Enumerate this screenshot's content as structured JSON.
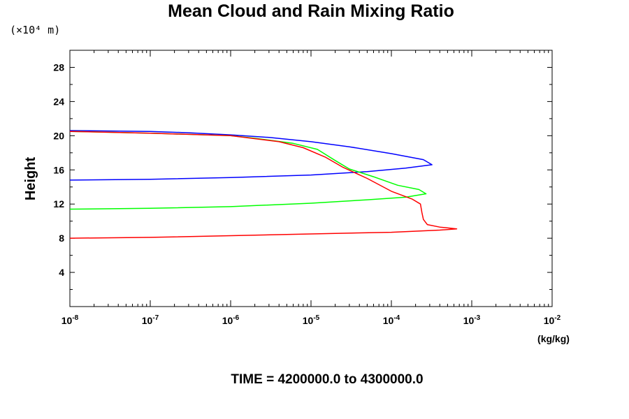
{
  "chart_data": {
    "type": "line",
    "title": "Mean Cloud and Rain Mixing Ratio",
    "ylabel": "Height",
    "y_scale_label": "(×10⁴ m)",
    "x_units_label": "(kg/kg)",
    "x_scale": "log",
    "xlim": [
      1e-08,
      0.01
    ],
    "ylim": [
      0,
      30
    ],
    "x_tick_labels": [
      {
        "base": "10",
        "exp": "-8"
      },
      {
        "base": "10",
        "exp": "-7"
      },
      {
        "base": "10",
        "exp": "-6"
      },
      {
        "base": "10",
        "exp": "-5"
      },
      {
        "base": "10",
        "exp": "-4"
      },
      {
        "base": "10",
        "exp": "-3"
      },
      {
        "base": "10",
        "exp": "-2"
      }
    ],
    "y_ticks": [
      4,
      8,
      12,
      16,
      20,
      24,
      28
    ],
    "grid": false,
    "series": [
      {
        "color": "#0000ff",
        "points": [
          [
            1e-08,
            14.8
          ],
          [
            1e-07,
            14.9
          ],
          [
            1e-06,
            15.1
          ],
          [
            1e-05,
            15.4
          ],
          [
            5e-05,
            15.8
          ],
          [
            0.00015,
            16.2
          ],
          [
            0.00032,
            16.6
          ],
          [
            0.00025,
            17.2
          ],
          [
            0.0001,
            17.9
          ],
          [
            3e-05,
            18.7
          ],
          [
            1e-05,
            19.3
          ],
          [
            3e-06,
            19.8
          ],
          [
            1e-06,
            20.1
          ],
          [
            3e-07,
            20.35
          ],
          [
            1e-07,
            20.5
          ],
          [
            1e-08,
            20.6
          ]
        ]
      },
      {
        "color": "#00ff00",
        "points": [
          [
            1e-08,
            11.4
          ],
          [
            1e-07,
            11.5
          ],
          [
            1e-06,
            11.7
          ],
          [
            1e-05,
            12.1
          ],
          [
            5e-05,
            12.5
          ],
          [
            0.00015,
            12.8
          ],
          [
            0.00027,
            13.2
          ],
          [
            0.00022,
            13.7
          ],
          [
            0.00012,
            14.2
          ],
          [
            6e-05,
            15.2
          ],
          [
            3e-05,
            16.1
          ],
          [
            2e-05,
            17.1
          ],
          [
            1.2e-05,
            18.4
          ],
          [
            6e-06,
            19.1
          ],
          [
            2e-06,
            19.7
          ],
          [
            1e-06,
            20.0
          ],
          [
            1e-07,
            20.3
          ],
          [
            1e-08,
            20.5
          ]
        ]
      },
      {
        "color": "#ff0000",
        "points": [
          [
            1e-08,
            8.0
          ],
          [
            1e-07,
            8.1
          ],
          [
            1e-06,
            8.3
          ],
          [
            1e-05,
            8.5
          ],
          [
            0.0001,
            8.7
          ],
          [
            0.0004,
            8.95
          ],
          [
            0.00065,
            9.1
          ],
          [
            0.0004,
            9.3
          ],
          [
            0.00028,
            9.6
          ],
          [
            0.00025,
            10.2
          ],
          [
            0.00024,
            11.0
          ],
          [
            0.00023,
            12.0
          ],
          [
            0.00018,
            12.6
          ],
          [
            0.0001,
            13.5
          ],
          [
            5e-05,
            15.0
          ],
          [
            2.5e-05,
            16.3
          ],
          [
            1.5e-05,
            17.5
          ],
          [
            8e-06,
            18.6
          ],
          [
            4e-06,
            19.3
          ],
          [
            1e-06,
            20.0
          ],
          [
            1e-07,
            20.3
          ],
          [
            1e-08,
            20.5
          ]
        ]
      }
    ]
  },
  "footer": {
    "time_range": "TIME = 4200000.0 to 4300000.0"
  }
}
